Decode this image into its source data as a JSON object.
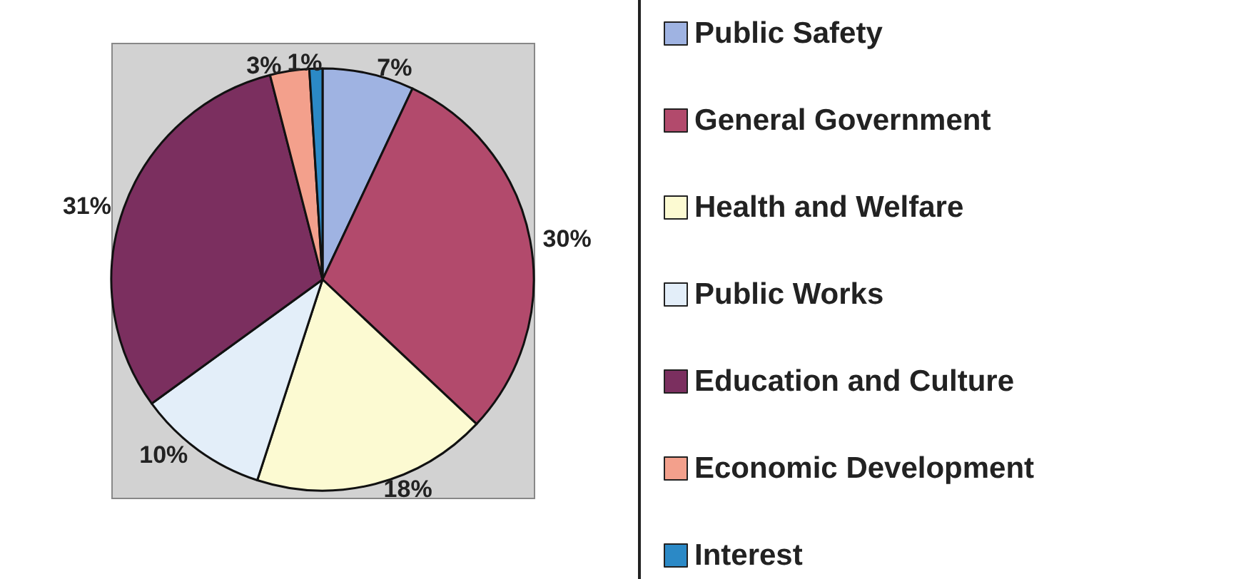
{
  "chart_data": {
    "type": "pie",
    "categories": [
      "Public Safety",
      "General Government",
      "Health and Welfare",
      "Public Works",
      "Education and Culture",
      "Economic Development",
      "Interest"
    ],
    "values": [
      7,
      30,
      18,
      10,
      31,
      3,
      1
    ],
    "colors": [
      "#9fb3e2",
      "#b24a6c",
      "#fcfad2",
      "#e3eef9",
      "#7b2f5f",
      "#f3a08c",
      "#2b89c6"
    ],
    "value_labels": [
      "7%",
      "30%",
      "18%",
      "10%",
      "31%",
      "3%",
      "1%"
    ],
    "legend": "right"
  }
}
